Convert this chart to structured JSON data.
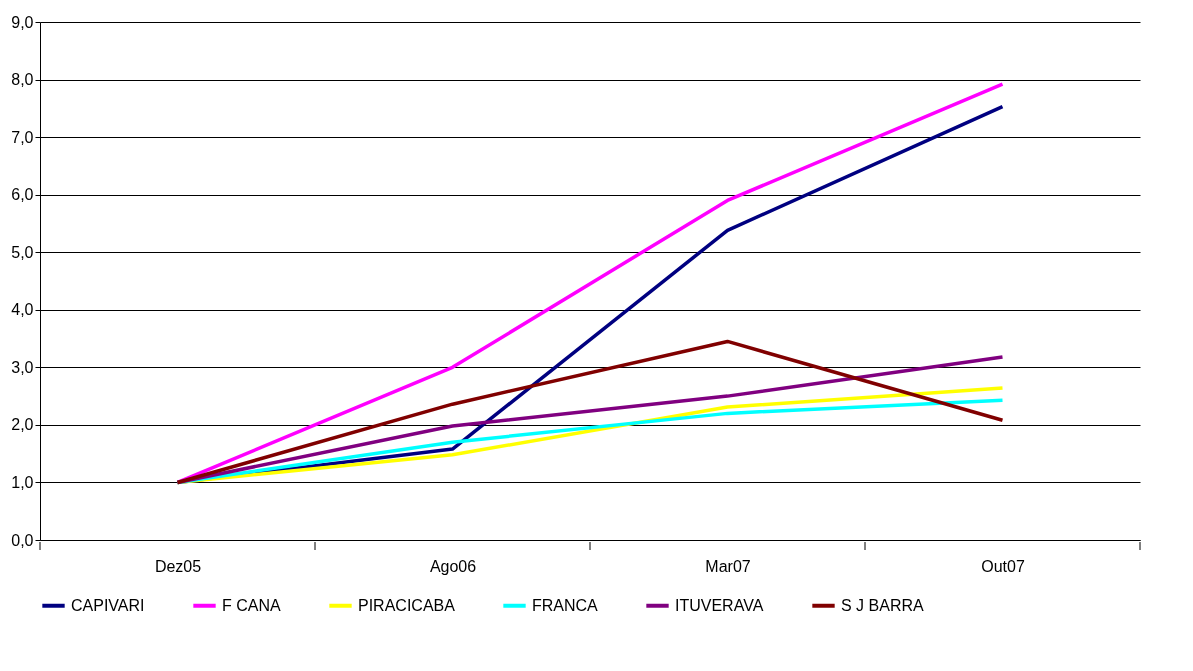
{
  "chart_data": {
    "type": "line",
    "categories": [
      "Dez05",
      "Ago06",
      "Mar07",
      "Out07"
    ],
    "series": [
      {
        "name": "CAPIVARI",
        "color": "#000080",
        "values": [
          1.0,
          1.58,
          5.38,
          7.53
        ]
      },
      {
        "name": "F CANA",
        "color": "#ff00ff",
        "values": [
          1.0,
          3.0,
          5.9,
          7.92
        ]
      },
      {
        "name": "PIRACICABA",
        "color": "#ffff00",
        "values": [
          1.0,
          1.48,
          2.31,
          2.64
        ]
      },
      {
        "name": "FRANCA",
        "color": "#00ffff",
        "values": [
          1.0,
          1.7,
          2.2,
          2.43
        ]
      },
      {
        "name": "ITUVERAVA",
        "color": "#800080",
        "values": [
          1.0,
          1.98,
          2.5,
          3.18
        ]
      },
      {
        "name": "S J BARRA",
        "color": "#800000",
        "values": [
          1.0,
          2.36,
          3.45,
          2.08
        ]
      }
    ],
    "ylim": [
      0,
      9
    ],
    "yticks": [
      {
        "value": 0,
        "label": "0,0"
      },
      {
        "value": 1,
        "label": "1,0"
      },
      {
        "value": 2,
        "label": "2,0"
      },
      {
        "value": 3,
        "label": "3,0"
      },
      {
        "value": 4,
        "label": "4,0"
      },
      {
        "value": 5,
        "label": "5,0"
      },
      {
        "value": 6,
        "label": "6,0"
      },
      {
        "value": 7,
        "label": "7,0"
      },
      {
        "value": 8,
        "label": "8,0"
      },
      {
        "value": 9,
        "label": "9,0"
      }
    ],
    "grid": "y",
    "legend": "bottom",
    "marker": "none",
    "line_style": "solid"
  }
}
